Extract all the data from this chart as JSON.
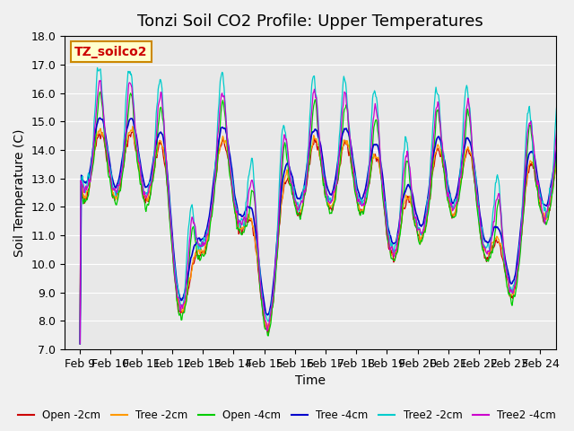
{
  "title": "Tonzi Soil CO2 Profile: Upper Temperatures",
  "ylabel": "Soil Temperature (C)",
  "xlabel": "Time",
  "watermark": "TZ_soilco2",
  "ylim": [
    7.0,
    18.0
  ],
  "yticks": [
    7.0,
    8.0,
    9.0,
    10.0,
    11.0,
    12.0,
    13.0,
    14.0,
    15.0,
    16.0,
    17.0,
    18.0
  ],
  "x_labels": [
    "Feb 9",
    "Feb 10",
    "Feb 11",
    "Feb 12",
    "Feb 13",
    "Feb 14",
    "Feb 15",
    "Feb 16",
    "Feb 17",
    "Feb 18",
    "Feb 19",
    "Feb 20",
    "Feb 21",
    "Feb 22",
    "Feb 23",
    "Feb 24"
  ],
  "series_colors": {
    "Open -2cm": "#cc0000",
    "Tree -2cm": "#ff9900",
    "Open -4cm": "#00cc00",
    "Tree -4cm": "#0000cc",
    "Tree2 -2cm": "#00cccc",
    "Tree2 -4cm": "#cc00cc"
  },
  "legend_order": [
    "Open -2cm",
    "Tree -2cm",
    "Open -4cm",
    "Tree -4cm",
    "Tree2 -2cm",
    "Tree2 -4cm"
  ],
  "background_color": "#e8e8e8",
  "plot_bg_color": "#e8e8e8",
  "title_fontsize": 13,
  "label_fontsize": 10,
  "tick_fontsize": 9
}
